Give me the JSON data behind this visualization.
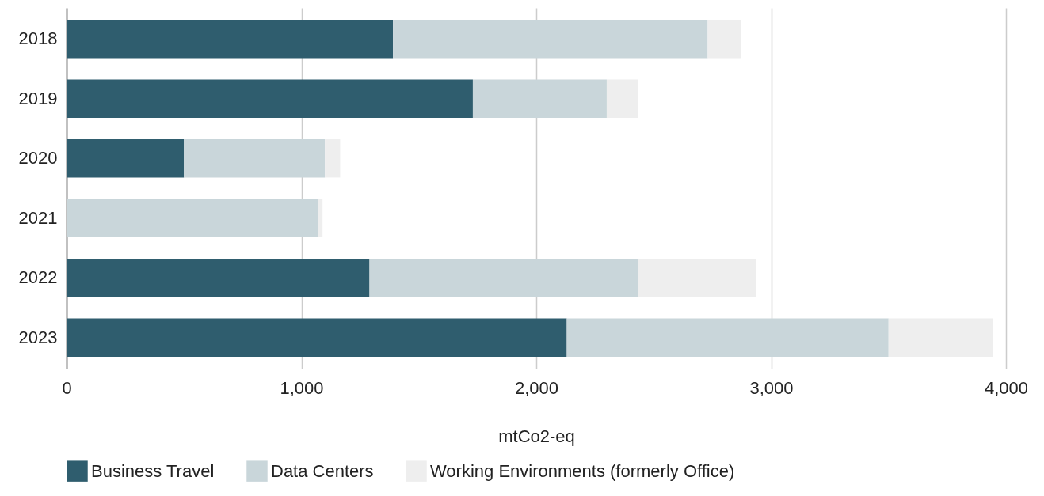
{
  "chart_data": {
    "type": "bar",
    "orientation": "horizontal",
    "stacked": true,
    "categories": [
      "2018",
      "2019",
      "2020",
      "2021",
      "2022",
      "2023"
    ],
    "series": [
      {
        "name": "Business Travel",
        "color": "#2f5d6e",
        "values": [
          1390,
          1730,
          500,
          0,
          1290,
          2130
        ]
      },
      {
        "name": "Data Centers",
        "color": "#c9d6da",
        "values": [
          1340,
          570,
          600,
          1070,
          1145,
          1370
        ]
      },
      {
        "name": "Working Environments (formerly Office)",
        "color": "#eeeeee",
        "values": [
          140,
          135,
          65,
          20,
          500,
          445
        ]
      }
    ],
    "xlabel": "mtCo2-eq",
    "xlim": [
      0,
      4000
    ],
    "xticks": [
      0,
      {
        "value": 1000,
        "label": "1,000"
      },
      {
        "value": 2000,
        "label": "2,000"
      },
      {
        "value": 3000,
        "label": "3,000"
      },
      {
        "value": 4000,
        "label": "4,000"
      }
    ],
    "grid": "x",
    "legend": "bottom"
  }
}
